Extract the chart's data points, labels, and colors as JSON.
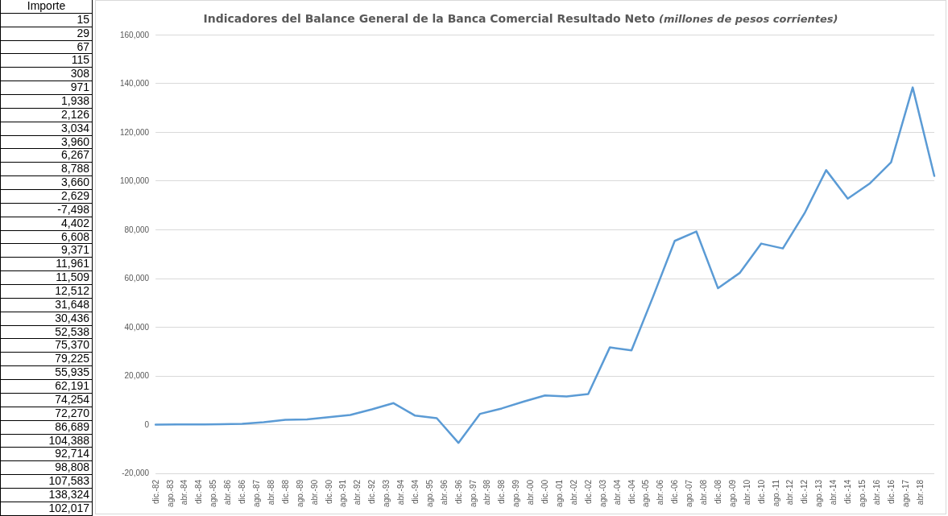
{
  "chart_data": [
    {
      "type": "other",
      "title": "Importe",
      "data_labels": true,
      "value_labels": [
        "15",
        "29",
        "67",
        "115",
        "308",
        "971",
        "1,938",
        "2,126",
        "3,034",
        "3,960",
        "6,267",
        "8,788",
        "3,660",
        "2,629",
        "-7,498",
        "4,402",
        "6,608",
        "9,371",
        "11,961",
        "11,509",
        "12,512",
        "31,648",
        "30,436",
        "52,538",
        "75,370",
        "79,225",
        "55,935",
        "62,191",
        "74,254",
        "72,270",
        "86,689",
        "104,388",
        "92,714",
        "98,808",
        "107,583",
        "138,324",
        "102,017"
      ]
    },
    {
      "type": "line",
      "title": "Indicadores del Balance General de la Banca Comercial Resultado Neto",
      "subtitle": "(millones de pesos corrientes)",
      "x": [
        "1982-12",
        "1983-12",
        "1984-12",
        "1985-12",
        "1986-12",
        "1987-12",
        "1988-12",
        "1989-12",
        "1990-12",
        "1991-12",
        "1992-12",
        "1993-12",
        "1994-12",
        "1995-12",
        "1996-12",
        "1997-12",
        "1998-12",
        "1999-12",
        "2000-12",
        "2001-12",
        "2002-12",
        "2003-12",
        "2004-12",
        "2005-12",
        "2006-12",
        "2007-12",
        "2008-12",
        "2009-12",
        "2010-12",
        "2011-12",
        "2012-12",
        "2013-12",
        "2014-12",
        "2015-12",
        "2016-12",
        "2017-12",
        "2018-12"
      ],
      "series": [
        {
          "color": "#5b9bd5",
          "values": [
            15,
            29,
            67,
            115,
            308,
            971,
            1938,
            2126,
            3034,
            3960,
            6267,
            8788,
            3660,
            2629,
            -7498,
            4402,
            6608,
            9371,
            11961,
            11509,
            12512,
            31648,
            30436,
            52538,
            75370,
            79225,
            55935,
            62191,
            74254,
            72270,
            86689,
            104388,
            92714,
            98808,
            107583,
            138324,
            102017
          ]
        }
      ],
      "xlim": [
        "1982-12",
        "2018-12"
      ],
      "xticks": [
        {
          "value": "1982-12",
          "label": "dic.-82"
        },
        {
          "value": "1983-08",
          "label": "ago.-83"
        },
        {
          "value": "1984-04",
          "label": "abr.-84"
        },
        {
          "value": "1984-12",
          "label": "dic.-84"
        },
        {
          "value": "1985-08",
          "label": "ago.-85"
        },
        {
          "value": "1986-04",
          "label": "abr.-86"
        },
        {
          "value": "1986-12",
          "label": "dic.-86"
        },
        {
          "value": "1987-08",
          "label": "ago.-87"
        },
        {
          "value": "1988-04",
          "label": "abr.-88"
        },
        {
          "value": "1988-12",
          "label": "dic.-88"
        },
        {
          "value": "1989-08",
          "label": "ago.-89"
        },
        {
          "value": "1990-04",
          "label": "abr.-90"
        },
        {
          "value": "1990-12",
          "label": "dic.-90"
        },
        {
          "value": "1991-08",
          "label": "ago.-91"
        },
        {
          "value": "1992-04",
          "label": "abr.-92"
        },
        {
          "value": "1992-12",
          "label": "dic.-92"
        },
        {
          "value": "1993-08",
          "label": "ago.-93"
        },
        {
          "value": "1994-04",
          "label": "abr.-94"
        },
        {
          "value": "1994-12",
          "label": "dic.-94"
        },
        {
          "value": "1995-08",
          "label": "ago.-95"
        },
        {
          "value": "1996-04",
          "label": "abr.-96"
        },
        {
          "value": "1996-12",
          "label": "dic.-96"
        },
        {
          "value": "1997-08",
          "label": "ago.-97"
        },
        {
          "value": "1998-04",
          "label": "abr.-98"
        },
        {
          "value": "1998-12",
          "label": "dic.-98"
        },
        {
          "value": "1999-08",
          "label": "ago.-99"
        },
        {
          "value": "2000-04",
          "label": "abr.-00"
        },
        {
          "value": "2000-12",
          "label": "dic.-00"
        },
        {
          "value": "2001-08",
          "label": "ago.-01"
        },
        {
          "value": "2002-04",
          "label": "abr.-02"
        },
        {
          "value": "2002-12",
          "label": "dic.-02"
        },
        {
          "value": "2003-08",
          "label": "ago.-03"
        },
        {
          "value": "2004-04",
          "label": "abr.-04"
        },
        {
          "value": "2004-12",
          "label": "dic.-04"
        },
        {
          "value": "2005-08",
          "label": "ago.-05"
        },
        {
          "value": "2006-04",
          "label": "abr.-06"
        },
        {
          "value": "2006-12",
          "label": "dic.-06"
        },
        {
          "value": "2007-08",
          "label": "ago.-07"
        },
        {
          "value": "2008-04",
          "label": "abr.-08"
        },
        {
          "value": "2008-12",
          "label": "dic.-08"
        },
        {
          "value": "2009-08",
          "label": "ago.-09"
        },
        {
          "value": "2010-04",
          "label": "abr.-10"
        },
        {
          "value": "2010-12",
          "label": "dic.-10"
        },
        {
          "value": "2011-08",
          "label": "ago.-11"
        },
        {
          "value": "2012-04",
          "label": "abr.-12"
        },
        {
          "value": "2012-12",
          "label": "dic.-12"
        },
        {
          "value": "2013-08",
          "label": "ago.-13"
        },
        {
          "value": "2014-04",
          "label": "abr.-14"
        },
        {
          "value": "2014-12",
          "label": "dic.-14"
        },
        {
          "value": "2015-08",
          "label": "ago.-15"
        },
        {
          "value": "2016-04",
          "label": "abr.-16"
        },
        {
          "value": "2016-12",
          "label": "dic.-16"
        },
        {
          "value": "2017-08",
          "label": "ago.-17"
        },
        {
          "value": "2018-04",
          "label": "abr.-18"
        }
      ],
      "ylim": [
        -20000,
        160000
      ],
      "yticks": [
        {
          "value": -20000,
          "label": "-20,000"
        },
        {
          "value": 0,
          "label": "0"
        },
        {
          "value": 20000,
          "label": "20,000"
        },
        {
          "value": 40000,
          "label": "40,000"
        },
        {
          "value": 60000,
          "label": "60,000"
        },
        {
          "value": 80000,
          "label": "80,000"
        },
        {
          "value": 100000,
          "label": "100,000"
        },
        {
          "value": 120000,
          "label": "120,000"
        },
        {
          "value": 140000,
          "label": "140,000"
        },
        {
          "value": 160000,
          "label": "160,000"
        }
      ],
      "grid": "y",
      "marker": "none",
      "line_style": "solid"
    }
  ]
}
